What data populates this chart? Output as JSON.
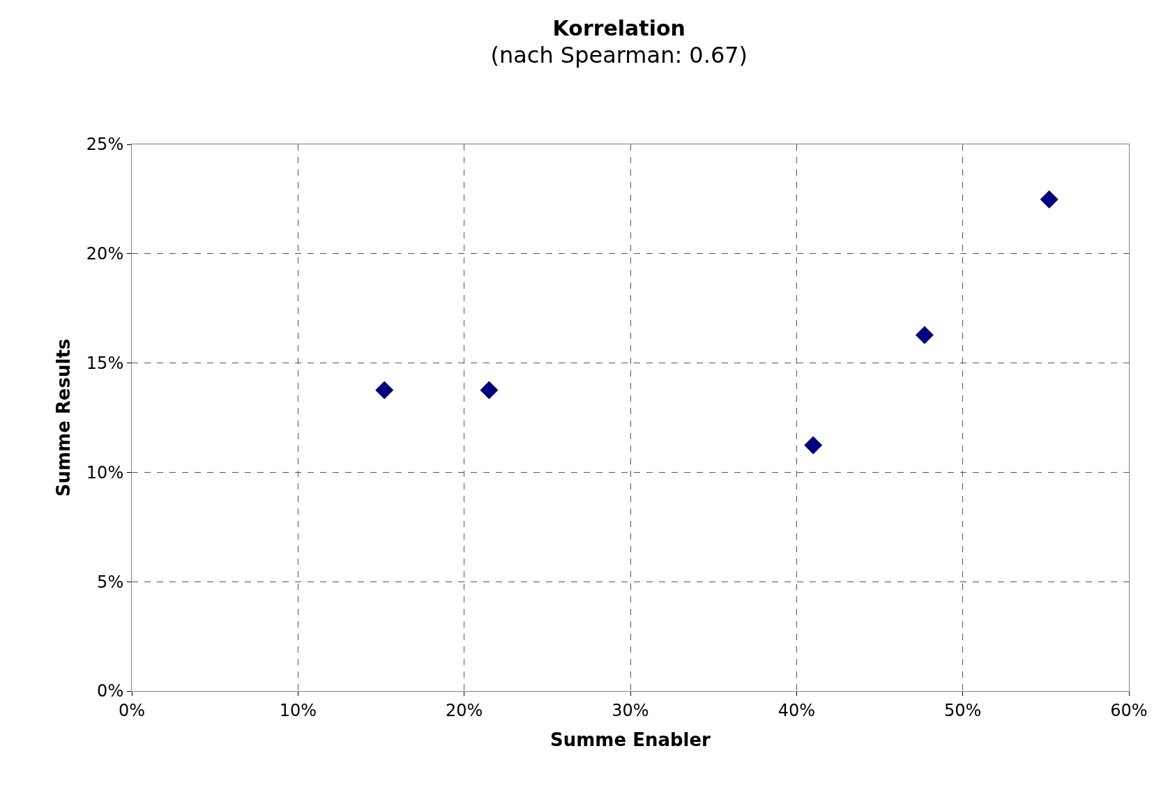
{
  "chart_data": {
    "type": "scatter",
    "title": "Korrelation",
    "subtitle": "(nach Spearman: 0.67)",
    "xlabel": "Summe Enabler",
    "ylabel": "Summe Results",
    "x": [
      0.152,
      0.215,
      0.41,
      0.477,
      0.552
    ],
    "series": [
      {
        "color": "#000080",
        "values": [
          0.1376,
          0.1376,
          0.1124,
          0.1628,
          0.2248
        ]
      }
    ],
    "xlim": [
      0,
      0.6
    ],
    "ylim": [
      0,
      0.25
    ],
    "xticks": [
      {
        "value": 0,
        "label": "0%"
      },
      {
        "value": 0.1,
        "label": "10%"
      },
      {
        "value": 0.2,
        "label": "20%"
      },
      {
        "value": 0.3,
        "label": "30%"
      },
      {
        "value": 0.4,
        "label": "40%"
      },
      {
        "value": 0.5,
        "label": "50%"
      },
      {
        "value": 0.6,
        "label": "60%"
      }
    ],
    "yticks": [
      {
        "value": 0,
        "label": "0%"
      },
      {
        "value": 0.05,
        "label": "5%"
      },
      {
        "value": 0.1,
        "label": "10%"
      },
      {
        "value": 0.15,
        "label": "15%"
      },
      {
        "value": 0.2,
        "label": "20%"
      },
      {
        "value": 0.25,
        "label": "25%"
      }
    ],
    "grid": true,
    "marker": "diamond"
  }
}
